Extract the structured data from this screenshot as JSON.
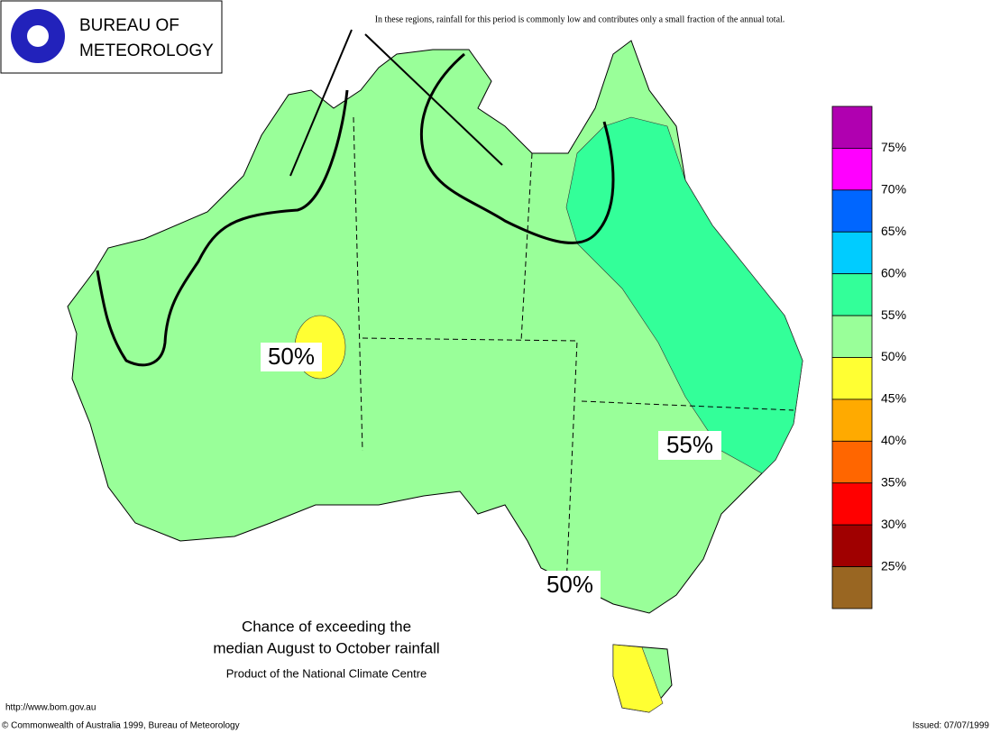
{
  "header": {
    "logo_line1": "BUREAU OF",
    "logo_line2": "METEOROLOGY"
  },
  "note": "In these regions, rainfall for this period is commonly low and contributes only a small fraction of the annual total.",
  "map_labels": [
    "50%",
    "55%",
    "50%"
  ],
  "legend": {
    "colors": [
      "#b000b0",
      "#ff00ff",
      "#0066ff",
      "#00ccff",
      "#33ff99",
      "#99ff99",
      "#ffff33",
      "#ffaa00",
      "#ff6600",
      "#ff0000",
      "#a00000",
      "#996622"
    ],
    "labels": [
      "75%",
      "70%",
      "65%",
      "60%",
      "55%",
      "50%",
      "45%",
      "40%",
      "35%",
      "30%",
      "25%"
    ]
  },
  "caption": {
    "line1": "Chance of exceeding the",
    "line2": "median August to October rainfall",
    "line3": "Product of the National Climate Centre"
  },
  "footer": {
    "url": "http://www.bom.gov.au",
    "copyright": "© Commonwealth of Australia 1999, Bureau of Meteorology",
    "issued": "Issued: 07/07/1999"
  }
}
